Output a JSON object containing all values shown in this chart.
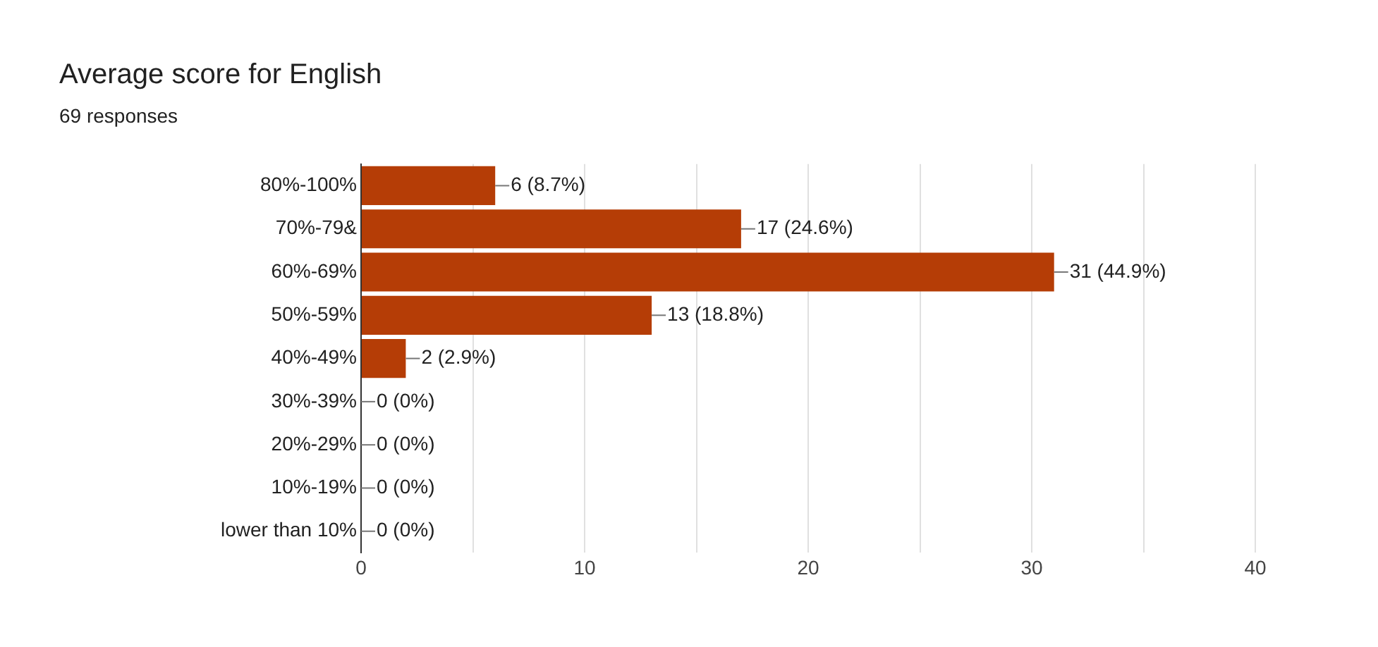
{
  "chart_data": {
    "type": "bar",
    "orientation": "horizontal",
    "title": "Average score for English",
    "subtitle": "69 responses",
    "categories": [
      "80%-100%",
      "70%-79&",
      "60%-69%",
      "50%-59%",
      "40%-49%",
      "30%-39%",
      "20%-29%",
      "10%-19%",
      "lower than 10%"
    ],
    "values": [
      6,
      17,
      31,
      13,
      2,
      0,
      0,
      0,
      0
    ],
    "value_labels": [
      "6 (8.7%)",
      "17 (24.6%)",
      "31 (44.9%)",
      "13 (18.8%)",
      "2 (2.9%)",
      "0 (0%)",
      "0 (0%)",
      "0 (0%)",
      "0 (0%)"
    ],
    "color": "#b53d06",
    "xlim": [
      0,
      40
    ],
    "xticks": [
      0,
      {
        "value": 5,
        "label": null
      },
      10,
      {
        "value": 15,
        "label": null
      },
      20,
      {
        "value": 25,
        "label": null
      },
      30,
      {
        "value": 35,
        "label": null
      },
      40
    ],
    "grid": "x"
  }
}
